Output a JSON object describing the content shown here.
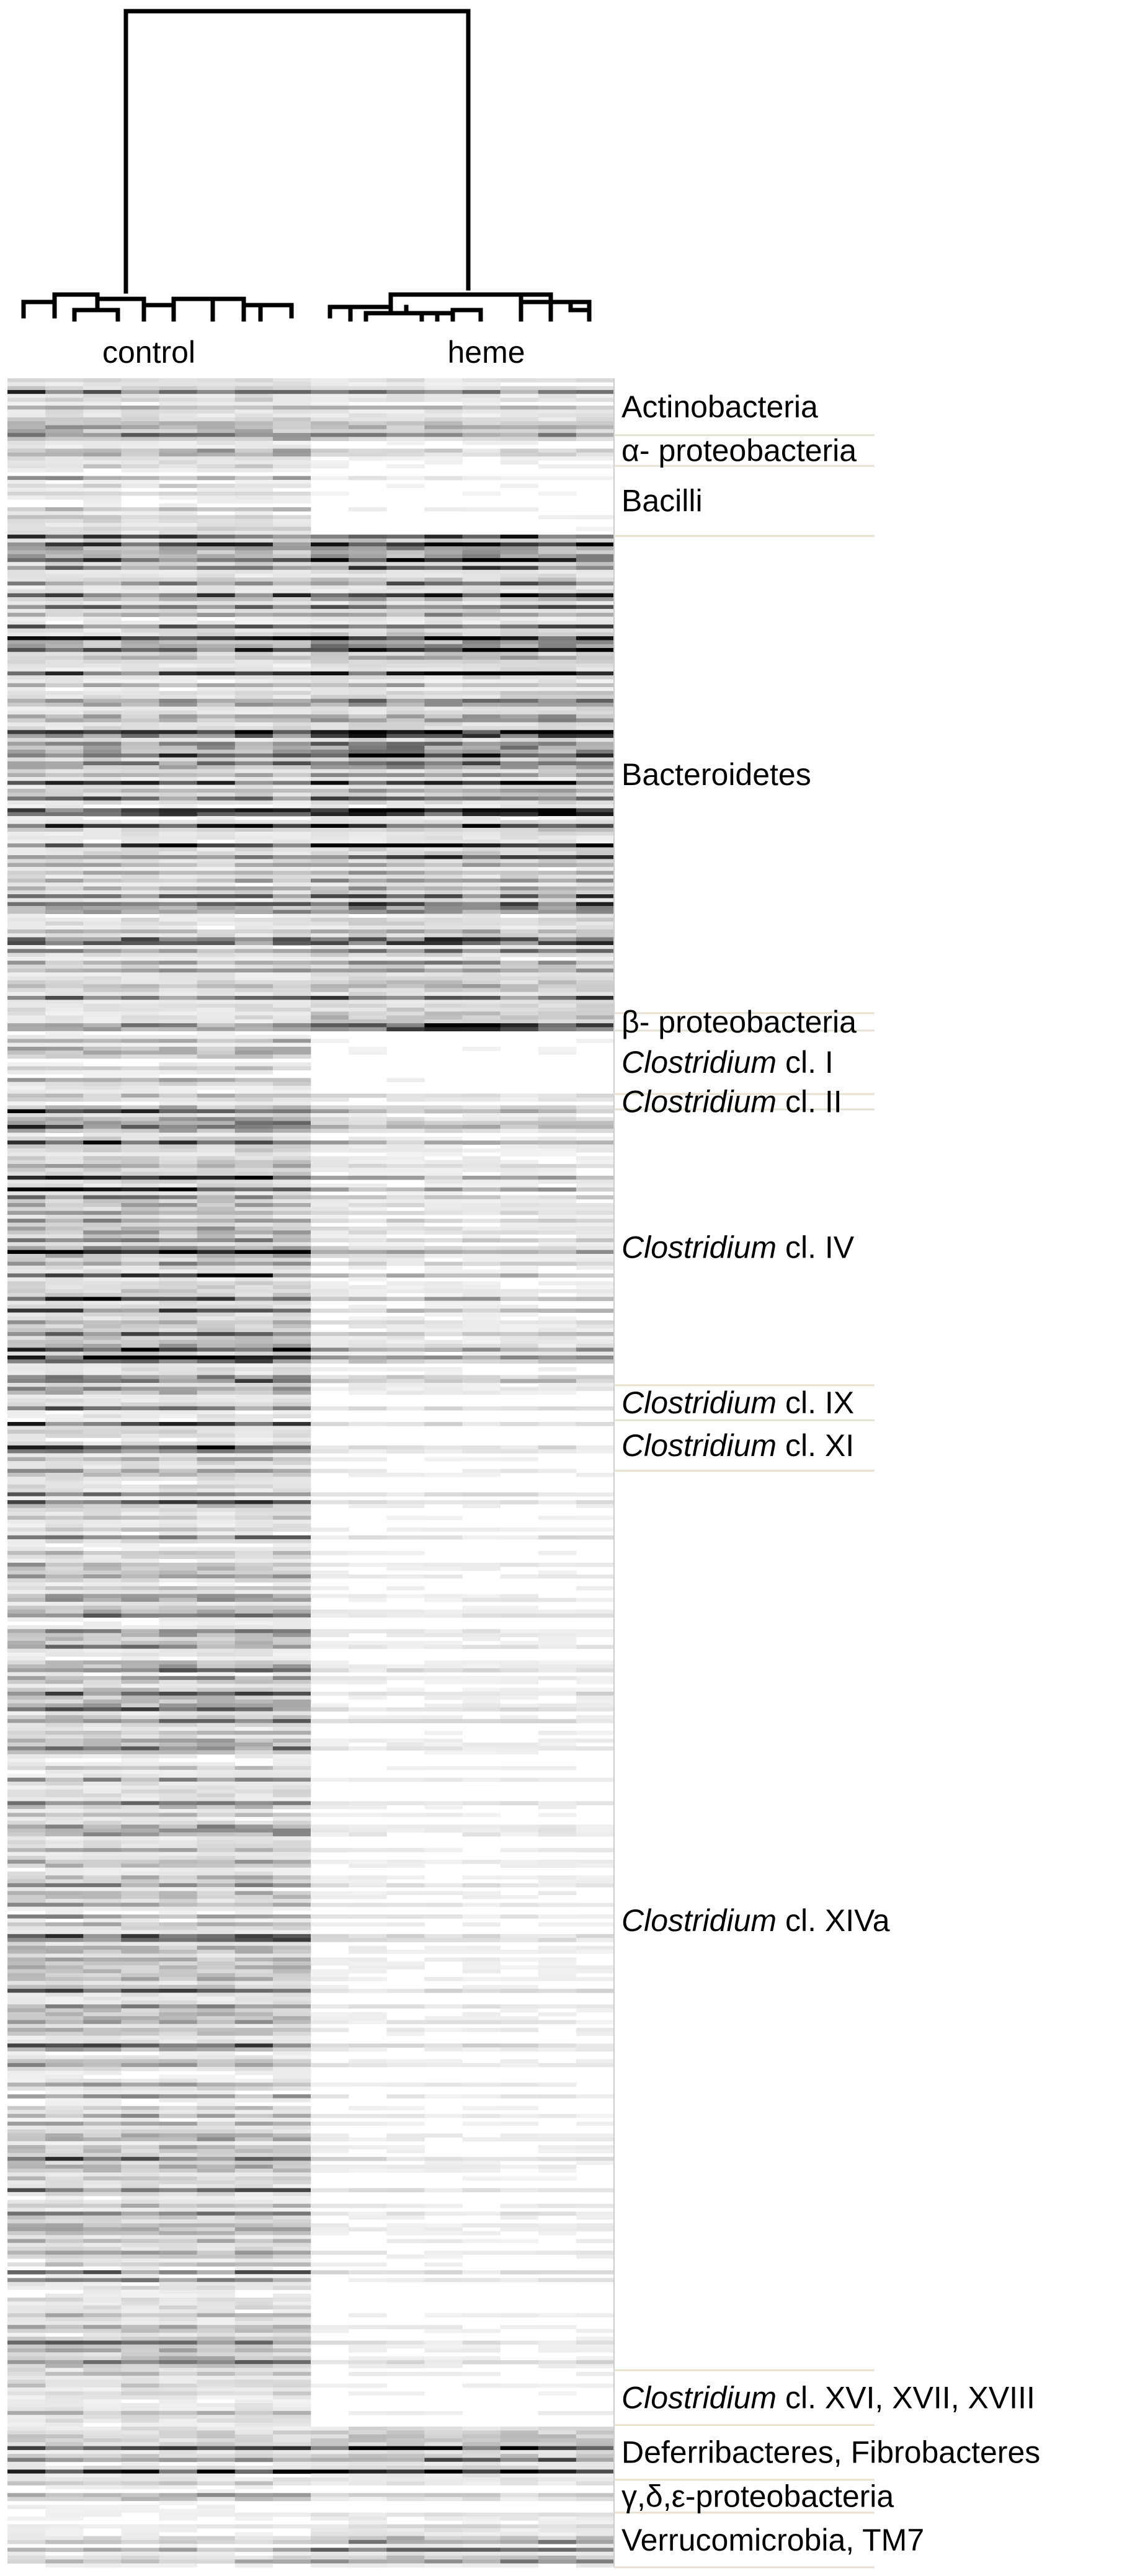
{
  "chart_data": {
    "type": "heatmap",
    "title": "",
    "xlabel": "",
    "ylabel": "",
    "colormap": [
      "#ffffff",
      "#000000"
    ],
    "column_groups": [
      {
        "name": "control",
        "columns": 8
      },
      {
        "name": "heme",
        "columns": 8
      }
    ],
    "dendrogram": {
      "position": "top",
      "clusters": [
        "control",
        "heme"
      ]
    },
    "row_groups": [
      {
        "prefix": "",
        "rest": "Actinobacteria",
        "start": 0.0,
        "end": 0.026,
        "control": 0.4,
        "heme": 0.3
      },
      {
        "prefix": "",
        "rest": "α- proteobacteria",
        "start": 0.026,
        "end": 0.04,
        "control": 0.3,
        "heme": 0.15
      },
      {
        "prefix": "",
        "rest": "Bacilli",
        "start": 0.04,
        "end": 0.072,
        "control": 0.2,
        "heme": 0.05
      },
      {
        "prefix": "",
        "rest": "Bacteroidetes",
        "start": 0.072,
        "end": 0.29,
        "control": 0.4,
        "heme": 0.5
      },
      {
        "prefix": "",
        "rest": "β- proteobacteria",
        "start": 0.29,
        "end": 0.298,
        "control": 0.35,
        "heme": 0.7
      },
      {
        "prefix": "Clostridium",
        "rest": " cl. I",
        "start": 0.298,
        "end": 0.327,
        "control": 0.25,
        "heme": 0.03
      },
      {
        "prefix": "Clostridium",
        "rest": " cl. II",
        "start": 0.327,
        "end": 0.334,
        "control": 0.35,
        "heme": 0.2
      },
      {
        "prefix": "Clostridium",
        "rest": " cl. IV",
        "start": 0.334,
        "end": 0.46,
        "control": 0.5,
        "heme": 0.2
      },
      {
        "prefix": "Clostridium",
        "rest": " cl. IX",
        "start": 0.46,
        "end": 0.476,
        "control": 0.4,
        "heme": 0.1
      },
      {
        "prefix": "Clostridium",
        "rest": " cl. XI",
        "start": 0.476,
        "end": 0.499,
        "control": 0.4,
        "heme": 0.08
      },
      {
        "prefix": "Clostridium",
        "rest": " cl. XIVa",
        "start": 0.499,
        "end": 0.91,
        "control": 0.35,
        "heme": 0.08
      },
      {
        "prefix": "Clostridium",
        "rest": " cl. XVI, XVII, XVIII",
        "start": 0.91,
        "end": 0.935,
        "control": 0.3,
        "heme": 0.08
      },
      {
        "prefix": "",
        "rest": "Deferribacteres, Fibrobacteres",
        "start": 0.935,
        "end": 0.96,
        "control": 0.45,
        "heme": 0.55
      },
      {
        "prefix": "",
        "rest": "γ,δ,ε-proteobacteria",
        "start": 0.96,
        "end": 0.975,
        "control": 0.2,
        "heme": 0.1
      },
      {
        "prefix": "",
        "rest": "Verrucomicrobia, TM7",
        "start": 0.975,
        "end": 1.0,
        "control": 0.2,
        "heme": 0.35
      }
    ]
  }
}
